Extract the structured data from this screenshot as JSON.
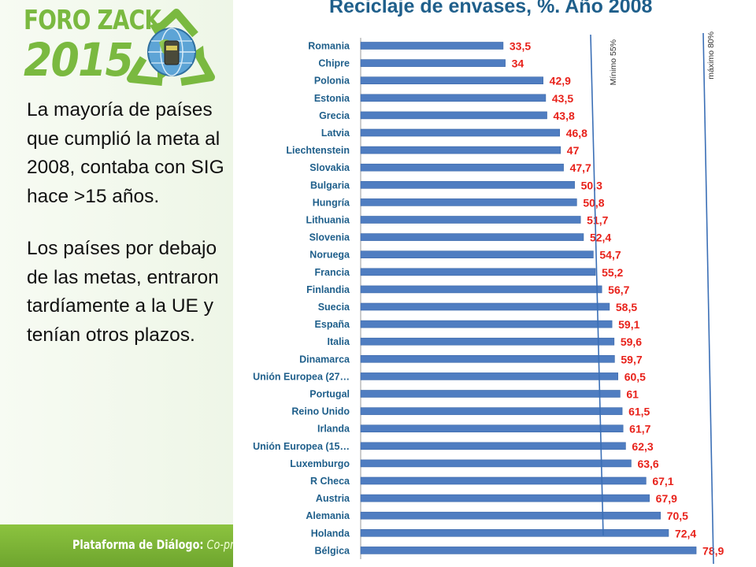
{
  "logo": {
    "line1": "FORO ZACK",
    "line2": "2015",
    "emblem": "recycle-globe-icon",
    "accent_color": "#7ab940"
  },
  "text": {
    "paragraph1": "La mayoría de países que cumplió la meta al 2008, contaba con SIG hace >15 años.",
    "paragraph2": "Los  países por debajo de las metas, entraron tardíamente a la UE y tenían otros plazos."
  },
  "banner": {
    "main": "Plataforma de Diálogo:",
    "sub": " Co-pr"
  },
  "chart_data": {
    "type": "bar",
    "orientation": "horizontal",
    "title": "Reciclaje de envases, %. Año 2008",
    "categories": [
      "Romania",
      "Chipre",
      "Polonia",
      "Estonia",
      "Grecia",
      "Latvia",
      "Liechtenstein",
      "Slovakia",
      "Bulgaria",
      "Hungría",
      "Lithuania",
      "Slovenia",
      "Noruega",
      "Francia",
      "Finlandia",
      "Suecia",
      "España",
      "Italia",
      "Dinamarca",
      "Unión Europea (27…",
      "Portugal",
      "Reino Unido",
      "Irlanda",
      "Unión Europea (15…",
      "Luxemburgo",
      "R Checa",
      "Austria",
      "Alemania",
      "Holanda",
      "Bélgica"
    ],
    "values": [
      33.5,
      34,
      42.9,
      43.5,
      43.8,
      46.8,
      47,
      47.7,
      50.3,
      50.8,
      51.7,
      52.4,
      54.7,
      55.2,
      56.7,
      58.5,
      59.1,
      59.6,
      59.7,
      60.5,
      61,
      61.5,
      61.7,
      62.3,
      63.6,
      67.1,
      67.9,
      70.5,
      72.4,
      78.9
    ],
    "value_labels": [
      "33,5",
      "34",
      "42,9",
      "43,5",
      "43,8",
      "46,8",
      "47",
      "47,7",
      "50,3",
      "50,8",
      "51,7",
      "52,4",
      "54,7",
      "55,2",
      "56,7",
      "58,5",
      "59,1",
      "59,6",
      "59,7",
      "60,5",
      "61",
      "61,5",
      "61,7",
      "62,3",
      "63,6",
      "67,1",
      "67,9",
      "70,5",
      "72,4",
      "78,9"
    ],
    "xlim": [
      0,
      80
    ],
    "grid": false,
    "reference_lines": [
      {
        "label": "Mínimo 55%",
        "value": 55
      },
      {
        "label": "máximo 80%",
        "value": 80
      }
    ],
    "colors": {
      "bar": "#4f7dc1",
      "bar_edge": "#3d68a8",
      "category_label": "#1f5f8b",
      "value_label": "#e8221b",
      "reference_line": "#3b6fb6",
      "axis": "#9a9a9a"
    }
  }
}
